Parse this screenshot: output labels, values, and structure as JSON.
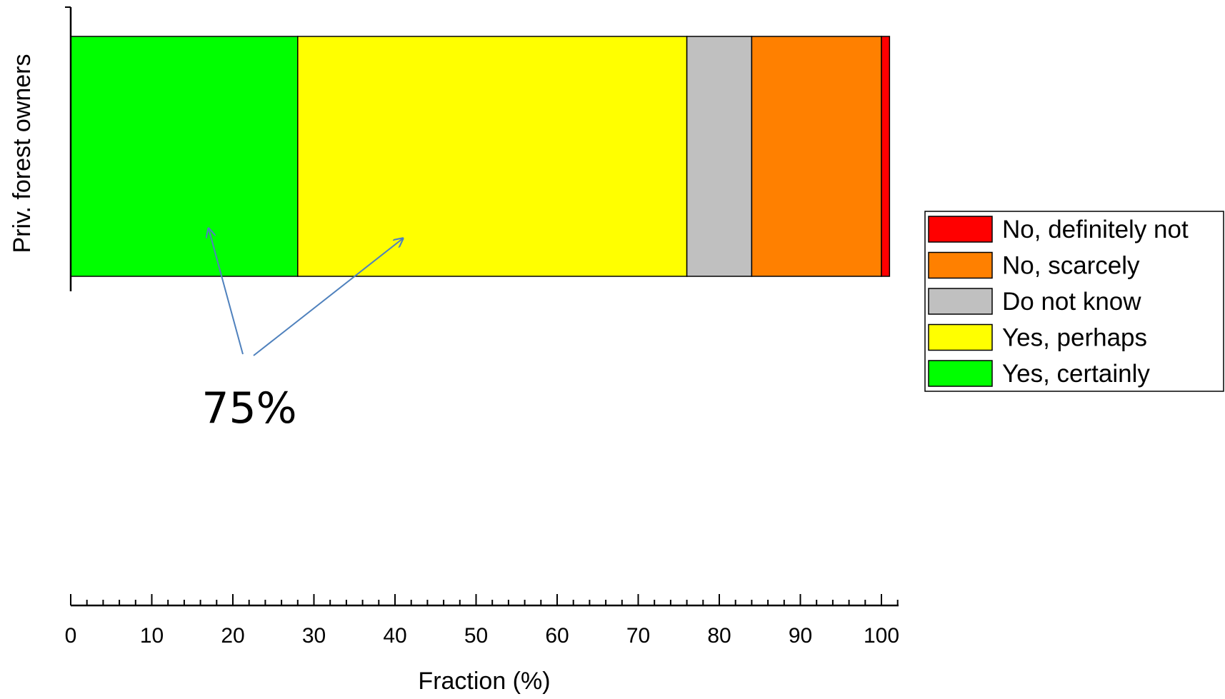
{
  "chart_data": {
    "type": "bar",
    "orientation": "horizontal",
    "stacked": true,
    "categories": [
      "Priv. forest owners"
    ],
    "series": [
      {
        "name": "Yes, certainly",
        "values": [
          28
        ],
        "color": "#00ff00"
      },
      {
        "name": "Yes, perhaps",
        "values": [
          48
        ],
        "color": "#ffff00"
      },
      {
        "name": "Do not know",
        "values": [
          8
        ],
        "color": "#c0c0c0"
      },
      {
        "name": "No, scarcely",
        "values": [
          16
        ],
        "color": "#ff8000"
      },
      {
        "name": "No, definitely not",
        "values": [
          1
        ],
        "color": "#ff0000"
      }
    ],
    "xlabel": "Fraction (%)",
    "ylabel": "Priv. forest owners",
    "xlim": [
      0,
      102
    ],
    "xticks": [
      "0",
      "10",
      "20",
      "30",
      "40",
      "50",
      "60",
      "70",
      "80",
      "90",
      "100"
    ],
    "legend": {
      "position": "right",
      "order": [
        "No, definitely not",
        "No, scarcely",
        "Do not know",
        "Yes, perhaps",
        "Yes, certainly"
      ]
    },
    "annotation": {
      "text": "75%",
      "points_to": [
        "Yes, certainly",
        "Yes, perhaps"
      ],
      "arrow_color": "#4f81bd"
    },
    "grid": false
  }
}
